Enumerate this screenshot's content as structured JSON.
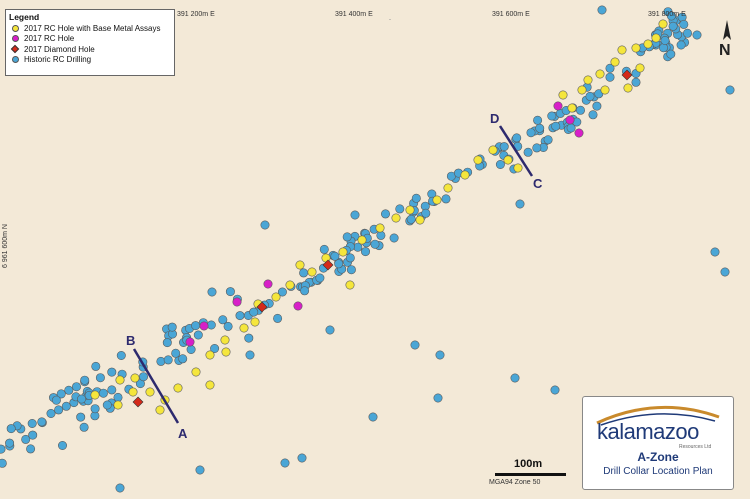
{
  "legend": {
    "title": "Legend",
    "items": [
      {
        "label": "2017 RC Hole with Base Metal Assays",
        "color": "#f5e63c",
        "shape": "circle"
      },
      {
        "label": "2017 RC Hole",
        "color": "#d81fc8",
        "shape": "circle"
      },
      {
        "label": "2017 Diamond Hole",
        "color": "#d42a1a",
        "shape": "diamond"
      },
      {
        "label": "Historic RC Drilling",
        "color": "#4aa6d6",
        "shape": "circle"
      }
    ]
  },
  "grid": {
    "eastings": [
      "391 200m E",
      "391 400m E",
      "391 600m E",
      "391 800m E"
    ],
    "northing": "6 961 600m N"
  },
  "north_label": "N",
  "sections": [
    {
      "name": "section-b-a",
      "start_label": "B",
      "end_label": "A"
    },
    {
      "name": "section-d-c",
      "start_label": "D",
      "end_label": "C"
    }
  ],
  "scale": {
    "label": "100m",
    "projection": "MGA94 Zone 50"
  },
  "logo": {
    "brand": "kalamazoo",
    "subtitle": "Resources Ltd",
    "zone": "A-Zone",
    "plan": "Drill Collar Location Plan"
  },
  "colors": {
    "background": "#f3e9d7",
    "historic": "#4aa6d6",
    "assay": "#f5e63c",
    "rc": "#d81fc8",
    "diamond": "#d42a1a",
    "section_line": "#2d2a6e"
  }
}
